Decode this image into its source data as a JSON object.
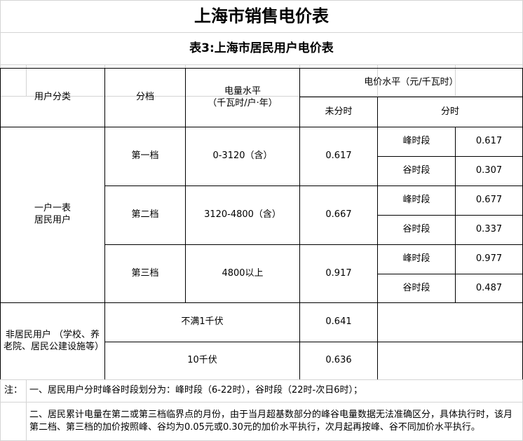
{
  "title": "上海市销售电价表",
  "subtitle": "表3:上海市居民用户电价表",
  "header": {
    "category": "用户分类",
    "tier": "分档",
    "usage_level": "电量水平",
    "usage_unit": "（千瓦时/户·年）",
    "price_level": "电价水平（元/千瓦时）",
    "flat": "未分时",
    "tou": "分时"
  },
  "residential": {
    "category": "一户一表\n居民用户",
    "tiers": [
      {
        "name": "第一档",
        "range": "0-3120（含）",
        "flat": "0.617",
        "peak_label": "峰时段",
        "peak": "0.617",
        "valley_label": "谷时段",
        "valley": "0.307"
      },
      {
        "name": "第二档",
        "range": "3120-4800（含）",
        "flat": "0.667",
        "peak_label": "峰时段",
        "peak": "0.677",
        "valley_label": "谷时段",
        "valley": "0.337"
      },
      {
        "name": "第三档",
        "range": "4800以上",
        "flat": "0.917",
        "peak_label": "峰时段",
        "peak": "0.977",
        "valley_label": "谷时段",
        "valley": "0.487"
      }
    ]
  },
  "non_residential": {
    "category": "非居民用户\n（学校、养老院、居民公建设施等）",
    "rows": [
      {
        "level": "不满1千伏",
        "flat": "0.641"
      },
      {
        "level": "10千伏",
        "flat": "0.636"
      }
    ]
  },
  "notes": {
    "label": "注：",
    "items": [
      "一、居民用户分时峰谷时段划分为：峰时段（6-22时），谷时段（22时-次日6时）；",
      "二、居民累计电量在第二或第三档临界点的月份，由于当月超基数部分的峰谷电量数据无法准确区分，具体执行时，该月第二档、第三档的加价按照峰、谷均为0.05元或0.30元的加价水平执行，次月起再按峰、谷不同加价水平执行。"
    ]
  }
}
